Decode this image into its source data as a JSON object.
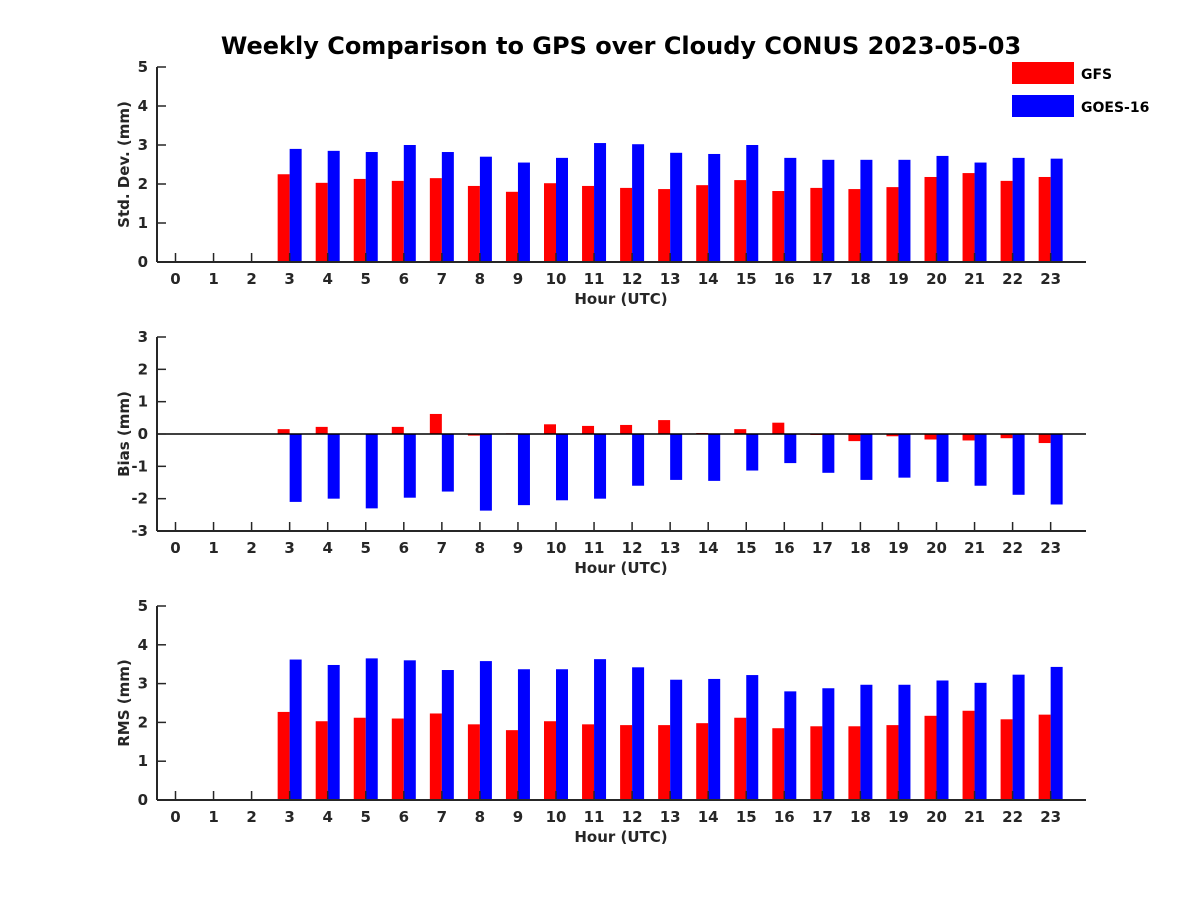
{
  "chart_data": {
    "title": "Weekly Comparison to GPS over Cloudy CONUS 2023-05-03",
    "legend": {
      "placement": "top-right",
      "entries": [
        {
          "name": "GFS",
          "color": "#ff0000"
        },
        {
          "name": "GOES-16",
          "color": "#0000ff"
        }
      ]
    },
    "panels": [
      {
        "type": "bar",
        "ylabel": "Std. Dev. (mm)",
        "xlabel": "Hour (UTC)",
        "ylim": [
          0,
          5
        ],
        "yticks": [
          0,
          1,
          2,
          3,
          4,
          5
        ],
        "categories": [
          "0",
          "1",
          "2",
          "3",
          "4",
          "5",
          "6",
          "7",
          "8",
          "9",
          "10",
          "11",
          "12",
          "13",
          "14",
          "15",
          "16",
          "17",
          "18",
          "19",
          "20",
          "21",
          "22",
          "23"
        ],
        "series": [
          {
            "name": "GFS",
            "color": "#ff0000",
            "values": [
              null,
              null,
              null,
              2.25,
              2.03,
              2.13,
              2.08,
              2.15,
              1.95,
              1.8,
              2.02,
              1.95,
              1.9,
              1.87,
              1.97,
              2.1,
              1.82,
              1.9,
              1.87,
              1.92,
              2.18,
              2.28,
              2.08,
              2.18
            ]
          },
          {
            "name": "GOES-16",
            "color": "#0000ff",
            "values": [
              null,
              null,
              null,
              2.9,
              2.85,
              2.82,
              3.0,
              2.82,
              2.7,
              2.55,
              2.67,
              3.05,
              3.02,
              2.8,
              2.77,
              3.0,
              2.67,
              2.62,
              2.62,
              2.62,
              2.72,
              2.55,
              2.67,
              2.65
            ]
          }
        ]
      },
      {
        "type": "bar",
        "ylabel": "Bias (mm)",
        "xlabel": "Hour (UTC)",
        "ylim": [
          -3,
          3
        ],
        "yticks": [
          -3,
          -2,
          -1,
          0,
          1,
          2,
          3
        ],
        "categories": [
          "0",
          "1",
          "2",
          "3",
          "4",
          "5",
          "6",
          "7",
          "8",
          "9",
          "10",
          "11",
          "12",
          "13",
          "14",
          "15",
          "16",
          "17",
          "18",
          "19",
          "20",
          "21",
          "22",
          "23"
        ],
        "series": [
          {
            "name": "GFS",
            "color": "#ff0000",
            "values": [
              null,
              null,
              null,
              0.15,
              0.22,
              0.0,
              0.22,
              0.62,
              -0.05,
              0.02,
              0.3,
              0.25,
              0.28,
              0.43,
              0.03,
              0.15,
              0.35,
              -0.03,
              -0.22,
              -0.07,
              -0.17,
              -0.2,
              -0.13,
              -0.28
            ]
          },
          {
            "name": "GOES-16",
            "color": "#0000ff",
            "values": [
              null,
              null,
              null,
              -2.1,
              -2.0,
              -2.3,
              -1.97,
              -1.78,
              -2.37,
              -2.2,
              -2.05,
              -2.0,
              -1.6,
              -1.42,
              -1.45,
              -1.13,
              -0.9,
              -1.2,
              -1.42,
              -1.35,
              -1.48,
              -1.6,
              -1.88,
              -2.18
            ]
          }
        ]
      },
      {
        "type": "bar",
        "ylabel": "RMS (mm)",
        "xlabel": "Hour (UTC)",
        "ylim": [
          0,
          5
        ],
        "yticks": [
          0,
          1,
          2,
          3,
          4,
          5
        ],
        "categories": [
          "0",
          "1",
          "2",
          "3",
          "4",
          "5",
          "6",
          "7",
          "8",
          "9",
          "10",
          "11",
          "12",
          "13",
          "14",
          "15",
          "16",
          "17",
          "18",
          "19",
          "20",
          "21",
          "22",
          "23"
        ],
        "series": [
          {
            "name": "GFS",
            "color": "#ff0000",
            "values": [
              null,
              null,
              null,
              2.27,
              2.03,
              2.12,
              2.1,
              2.23,
              1.95,
              1.8,
              2.03,
              1.95,
              1.93,
              1.93,
              1.98,
              2.12,
              1.85,
              1.9,
              1.9,
              1.93,
              2.17,
              2.3,
              2.08,
              2.2
            ]
          },
          {
            "name": "GOES-16",
            "color": "#0000ff",
            "values": [
              null,
              null,
              null,
              3.62,
              3.48,
              3.65,
              3.6,
              3.35,
              3.58,
              3.37,
              3.37,
              3.63,
              3.42,
              3.1,
              3.12,
              3.22,
              2.8,
              2.88,
              2.97,
              2.97,
              3.08,
              3.02,
              3.23,
              3.43
            ]
          }
        ]
      }
    ]
  }
}
